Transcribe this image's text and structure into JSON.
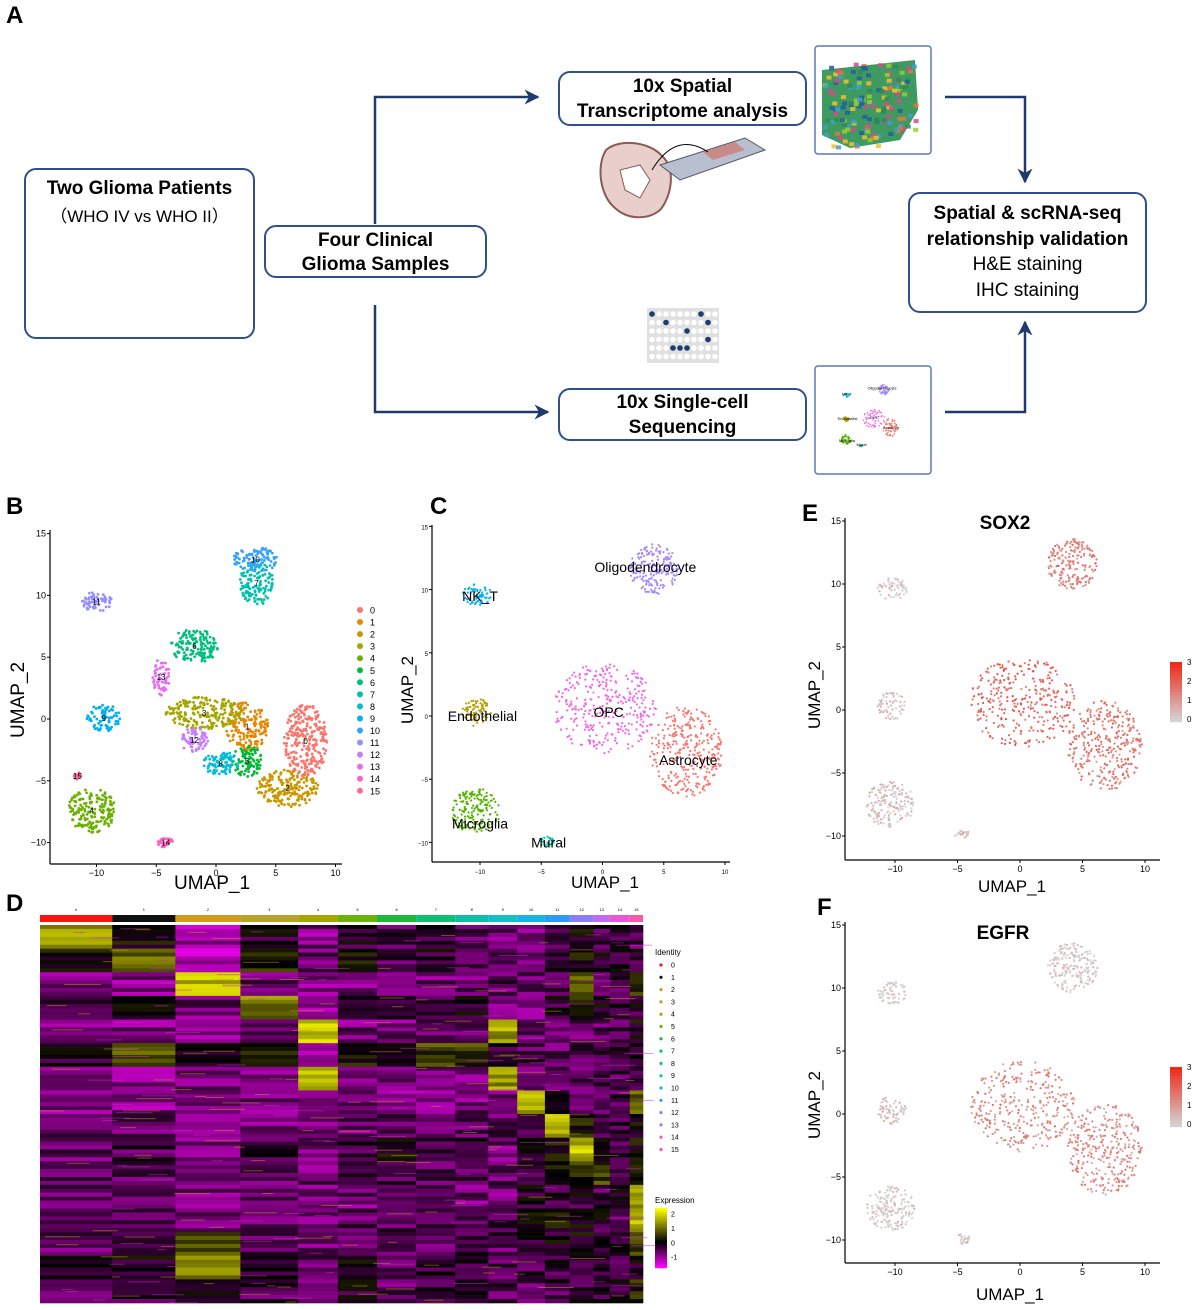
{
  "panel_letters": {
    "a": "A",
    "b": "B",
    "c": "C",
    "d": "D",
    "e": "E",
    "f": "F"
  },
  "workflow": {
    "patients": {
      "title": "Two Glioma Patients",
      "subtitle": "（WHO IV vs WHO II）"
    },
    "samples": {
      "line1": "Four Clinical",
      "line2": "Glioma Samples"
    },
    "spatial": {
      "line1": "10x Spatial",
      "line2": "Transcriptome analysis"
    },
    "singlecell": {
      "line1": "10x Single-cell",
      "line2": "Sequencing"
    },
    "validation": {
      "line1": "Spatial & scRNA-seq",
      "line2": "relationship validation",
      "line3": "H&E staining",
      "line4": "IHC staining"
    },
    "thumbnail_labels": [
      "NK_T",
      "Oligodendrocyte",
      "Endothelial",
      "OPC",
      "Astrocyte",
      "Microglia",
      "Mural"
    ],
    "colors": {
      "arrow": "#1F3A6E",
      "box_border": "#2F4F8F"
    }
  },
  "chart_data": [
    {
      "id": "B",
      "type": "scatter",
      "title": "",
      "xlabel": "UMAP_1",
      "ylabel": "UMAP_2",
      "xlim": [
        -13,
        10
      ],
      "ylim": [
        -11,
        15
      ],
      "xticks": [
        -10,
        -5,
        0,
        5,
        10
      ],
      "yticks": [
        -10,
        -5,
        0,
        5,
        10,
        15
      ],
      "grid": false,
      "legend_placement": "right",
      "clusters": [
        {
          "label": "0",
          "color": "#F8766D",
          "cx": 7.5,
          "cy": -1.8,
          "rx": 1.8,
          "ry": 3.0
        },
        {
          "label": "1",
          "color": "#E58700",
          "cx": 2.6,
          "cy": -0.6,
          "rx": 1.8,
          "ry": 2.0
        },
        {
          "label": "2",
          "color": "#C99800",
          "cx": 6.0,
          "cy": -5.6,
          "rx": 2.6,
          "ry": 1.5
        },
        {
          "label": "3",
          "color": "#A3A500",
          "cx": -1.0,
          "cy": 0.5,
          "rx": 3.2,
          "ry": 1.3
        },
        {
          "label": "4",
          "color": "#6BB100",
          "cx": -10.4,
          "cy": -7.4,
          "rx": 2.0,
          "ry": 1.8
        },
        {
          "label": "5",
          "color": "#00BA38",
          "cx": 2.6,
          "cy": -3.4,
          "rx": 1.3,
          "ry": 1.3
        },
        {
          "label": "6",
          "color": "#00BF7D",
          "cx": -1.8,
          "cy": 5.9,
          "rx": 2.0,
          "ry": 1.4
        },
        {
          "label": "7",
          "color": "#00C0AF",
          "cx": 3.4,
          "cy": 11.0,
          "rx": 1.4,
          "ry": 1.8
        },
        {
          "label": "8",
          "color": "#00BCD8",
          "cx": 0.4,
          "cy": -3.6,
          "rx": 1.5,
          "ry": 1.0
        },
        {
          "label": "9",
          "color": "#00B0F6",
          "cx": -9.4,
          "cy": 0.1,
          "rx": 1.4,
          "ry": 1.1
        },
        {
          "label": "10",
          "color": "#35A2FF",
          "cx": 3.3,
          "cy": 12.9,
          "rx": 1.9,
          "ry": 1.0
        },
        {
          "label": "11",
          "color": "#9590FF",
          "cx": -10.0,
          "cy": 9.5,
          "rx": 1.3,
          "ry": 0.8
        },
        {
          "label": "12",
          "color": "#C77CFF",
          "cx": -1.8,
          "cy": -1.7,
          "rx": 1.2,
          "ry": 1.0
        },
        {
          "label": "13",
          "color": "#E76BF3",
          "cx": -4.6,
          "cy": 3.4,
          "rx": 0.7,
          "ry": 1.5
        },
        {
          "label": "14",
          "color": "#FF62BC",
          "cx": -4.2,
          "cy": -10.0,
          "rx": 0.7,
          "ry": 0.4
        },
        {
          "label": "15",
          "color": "#FF6C91",
          "cx": -11.6,
          "cy": -4.6,
          "rx": 0.3,
          "ry": 0.3
        }
      ]
    },
    {
      "id": "C",
      "type": "scatter",
      "title": "",
      "xlabel": "UMAP_1",
      "ylabel": "UMAP_2",
      "xlim": [
        -13,
        10
      ],
      "ylim": [
        -11,
        15
      ],
      "xticks": [
        -10,
        -5,
        0,
        5,
        10
      ],
      "yticks": [
        -10,
        -5,
        0,
        5,
        10,
        15
      ],
      "grid": false,
      "clusters": [
        {
          "label": "NK_T",
          "color": "#00B4EF",
          "cx": -10.2,
          "cy": 9.6,
          "rx": 1.2,
          "ry": 0.9,
          "lx": -10,
          "ly": 9.5
        },
        {
          "label": "Oligodendrocyte",
          "color": "#A58AFF",
          "cx": 4.2,
          "cy": 11.6,
          "rx": 2.0,
          "ry": 2.0,
          "lx": 3.5,
          "ly": 11.8
        },
        {
          "label": "OPC",
          "color": "#F564E3",
          "cx": 0.2,
          "cy": 0.6,
          "rx": 4.2,
          "ry": 3.6,
          "lx": 0.5,
          "ly": 0.3
        },
        {
          "label": "Astrocyte",
          "color": "#F8766D",
          "cx": 6.8,
          "cy": -2.8,
          "rx": 3.0,
          "ry": 3.6,
          "lx": 7,
          "ly": -3.5
        },
        {
          "label": "Endothelial",
          "color": "#B79F00",
          "cx": -10.3,
          "cy": 0.3,
          "rx": 1.2,
          "ry": 1.1,
          "lx": -9.8,
          "ly": 0
        },
        {
          "label": "Microglia",
          "color": "#53B400",
          "cx": -10.4,
          "cy": -7.5,
          "rx": 2.0,
          "ry": 1.8,
          "lx": -10,
          "ly": -8.5
        },
        {
          "label": "Mural",
          "color": "#00C1A3",
          "cx": -4.6,
          "cy": -9.9,
          "rx": 0.6,
          "ry": 0.4,
          "lx": -4.4,
          "ly": -10
        }
      ]
    },
    {
      "id": "E",
      "type": "scatter",
      "title": "SOX2",
      "xlabel": "UMAP_1",
      "ylabel": "UMAP_2",
      "xlim": [
        -13,
        10
      ],
      "ylim": [
        -11,
        15
      ],
      "xticks": [
        -10,
        -5,
        0,
        5,
        10
      ],
      "yticks": [
        -10,
        -5,
        0,
        5,
        10,
        15
      ],
      "color_scale": {
        "min": 0,
        "max": 3,
        "ticks": [
          3,
          2,
          1,
          0
        ],
        "low": "#D3D3D3",
        "high": "#EE2A1B"
      },
      "expression_by_celltype": {
        "NK_T": 0.2,
        "Oligodendrocyte": 1.4,
        "OPC": 1.9,
        "Astrocyte": 1.6,
        "Endothelial": 0.2,
        "Microglia": 0.3,
        "Mural": 0.2
      }
    },
    {
      "id": "F",
      "type": "scatter",
      "title": "EGFR",
      "xlabel": "UMAP_1",
      "ylabel": "UMAP_2",
      "xlim": [
        -13,
        10
      ],
      "ylim": [
        -11,
        15
      ],
      "xticks": [
        -10,
        -5,
        0,
        5,
        10
      ],
      "yticks": [
        -10,
        -5,
        0,
        5,
        10,
        15
      ],
      "color_scale": {
        "min": 0,
        "max": 3,
        "ticks": [
          3,
          2,
          1,
          0
        ],
        "low": "#D3D3D3",
        "high": "#EE2A1B"
      },
      "expression_by_celltype": {
        "NK_T": 0.1,
        "Oligodendrocyte": 0.1,
        "OPC": 1.3,
        "Astrocyte": 1.2,
        "Endothelial": 0.3,
        "Microglia": 0.1,
        "Mural": 0.1
      }
    },
    {
      "id": "D",
      "type": "heatmap",
      "title": "",
      "identity_legend_title": "Identity",
      "expression_legend_title": "Expression",
      "expression_ticks": [
        2,
        1,
        0,
        -1
      ],
      "expression_range": [
        -1.8,
        2.4
      ],
      "clusters": [
        "0",
        "1",
        "2",
        "3",
        "4",
        "5",
        "6",
        "7",
        "8",
        "9",
        "10",
        "11",
        "12",
        "13",
        "14",
        "15"
      ],
      "cluster_colors": [
        "#F8130D",
        "#111111",
        "#D49A1B",
        "#B5A32A",
        "#A3A800",
        "#6BB30A",
        "#20B83A",
        "#10BE72",
        "#12BDA6",
        "#15BEC4",
        "#16B3E4",
        "#2E9AF2",
        "#8C7FF4",
        "#C06CEE",
        "#E559D6",
        "#F45AA8"
      ],
      "cluster_proportions": [
        0.12,
        0.105,
        0.108,
        0.096,
        0.066,
        0.065,
        0.065,
        0.065,
        0.055,
        0.048,
        0.046,
        0.041,
        0.04,
        0.027,
        0.033,
        0.022
      ],
      "gene_blocks": 16,
      "matrix": [
        [
          1.6,
          0.3,
          -0.8,
          0.1,
          -0.6,
          0.0,
          -0.3,
          -0.2,
          -0.3,
          -0.4,
          -0.5,
          -0.3,
          0.2,
          -0.2,
          -0.1,
          -0.3
        ],
        [
          0.4,
          1.2,
          -1.0,
          0.6,
          -0.5,
          0.5,
          -0.2,
          0.0,
          -0.2,
          -0.4,
          -0.4,
          0.0,
          0.4,
          0.2,
          0.1,
          0.0
        ],
        [
          -0.6,
          -0.6,
          2.0,
          -0.5,
          -0.6,
          -0.5,
          -0.6,
          -0.5,
          -0.5,
          -0.3,
          -0.4,
          -0.4,
          1.0,
          -0.3,
          -0.2,
          1.0
        ],
        [
          -0.3,
          0.2,
          -0.5,
          1.4,
          -0.6,
          0.3,
          -0.3,
          -0.2,
          0.1,
          -0.5,
          -0.5,
          0.0,
          0.8,
          0.2,
          0.0,
          0.0
        ],
        [
          -0.5,
          -0.6,
          -0.6,
          -0.5,
          2.2,
          -0.5,
          -0.5,
          -0.5,
          -0.5,
          1.8,
          -0.5,
          -0.5,
          -0.4,
          -0.4,
          -0.3,
          0.3
        ],
        [
          0.1,
          1.0,
          0.2,
          0.4,
          -0.6,
          0.4,
          0.1,
          0.9,
          0.8,
          0.0,
          -0.3,
          -0.4,
          -0.2,
          -0.2,
          -0.1,
          -0.1
        ],
        [
          -0.5,
          -0.6,
          -0.6,
          -0.5,
          1.9,
          -0.5,
          -0.5,
          -0.5,
          -0.5,
          1.7,
          -0.4,
          -0.4,
          -0.3,
          -0.3,
          -0.3,
          -0.2
        ],
        [
          -0.6,
          -0.6,
          -0.6,
          -0.6,
          -0.6,
          -0.4,
          -0.5,
          -0.5,
          -0.5,
          -0.4,
          2.0,
          0.1,
          -0.3,
          -0.3,
          -0.2,
          1.0
        ],
        [
          -0.5,
          -0.4,
          -0.6,
          -0.5,
          -0.5,
          -0.4,
          -0.4,
          -0.4,
          -0.3,
          -0.3,
          -0.2,
          1.9,
          0.4,
          -0.2,
          -0.2,
          0.2
        ],
        [
          -0.4,
          -0.2,
          -0.5,
          -0.2,
          -0.5,
          -0.1,
          0.3,
          0.0,
          -0.2,
          -0.5,
          0.3,
          0.5,
          2.0,
          0.3,
          -0.2,
          0.3
        ],
        [
          -0.4,
          -0.3,
          -0.5,
          -0.4,
          -0.5,
          -0.3,
          -0.3,
          -0.3,
          -0.3,
          -0.4,
          -0.2,
          0.4,
          0.6,
          0.9,
          -0.1,
          0.8
        ],
        [
          -0.5,
          -0.5,
          -0.5,
          -0.5,
          -0.5,
          -0.5,
          -0.5,
          -0.5,
          -0.5,
          -0.5,
          0.1,
          0.0,
          0.0,
          -0.2,
          0.2,
          1.8
        ],
        [
          -0.3,
          -0.2,
          -0.4,
          -0.3,
          -0.4,
          -0.3,
          -0.2,
          -0.2,
          -0.2,
          -0.3,
          0.6,
          0.3,
          0.3,
          0.0,
          -0.2,
          2.0
        ],
        [
          -0.4,
          -0.3,
          0.9,
          -0.3,
          -0.5,
          -0.2,
          -0.3,
          -0.3,
          -0.2,
          -0.3,
          0.1,
          0.2,
          0.3,
          0.1,
          0.0,
          0.7
        ],
        [
          0.2,
          0.1,
          1.5,
          0.1,
          -0.5,
          0.1,
          -0.2,
          -0.1,
          -0.1,
          -0.3,
          -0.2,
          -0.1,
          0.0,
          0.0,
          -0.1,
          0.1
        ],
        [
          -0.2,
          -0.1,
          0.0,
          -0.2,
          -0.4,
          0.0,
          -0.3,
          -0.2,
          -0.1,
          -0.3,
          -0.3,
          -0.2,
          -0.1,
          -0.1,
          0.0,
          0.5
        ]
      ]
    }
  ]
}
